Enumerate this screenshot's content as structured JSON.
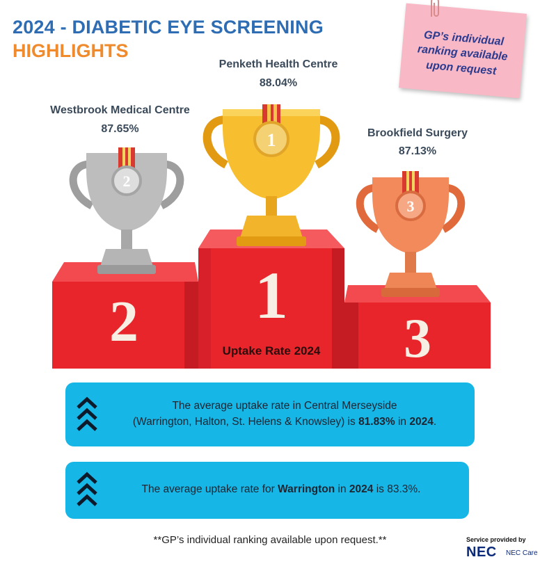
{
  "header": {
    "title_line1": "2024 - DIABETIC EYE SCREENING",
    "title_line2": "HIGHLIGHTS"
  },
  "sticky_note": {
    "text": "GP’s individual\nranking available\nupon request"
  },
  "winners": [
    {
      "rank": "1",
      "name": "Penketh Health Centre",
      "rate": "88.04%"
    },
    {
      "rank": "2",
      "name": "Westbrook Medical Centre",
      "rate": "87.65%"
    },
    {
      "rank": "3",
      "name": "Brookfield Surgery",
      "rate": "87.13%"
    }
  ],
  "podium": {
    "label": "Uptake Rate 2024",
    "rank_1": "1",
    "rank_2": "2",
    "rank_3": "3"
  },
  "info_boxes": [
    {
      "line1": "The average uptake rate in Central Merseyside",
      "line2_pre": "(Warrington, Halton, St. Helens & Knowsley) is ",
      "rate": "81.83%",
      "mid": " in ",
      "year": "2024",
      "end": "."
    },
    {
      "pre": "The average uptake rate for ",
      "area": "Warrington",
      "mid": " in ",
      "year": "2024",
      "mid2": " is ",
      "rate": "83.3%",
      "end": "."
    }
  ],
  "footer": {
    "note": "**GP’s individual ranking available upon request.**",
    "provided_by": "Service provided by",
    "logo": "NEC",
    "logo_sub": "NEC Care"
  },
  "colors": {
    "title_blue": "#2e6db3",
    "title_orange": "#ef8b2c",
    "podium_red": "#e8252b",
    "box_blue": "#16b6e6",
    "note_pink": "#f9b8c6",
    "gold": "#f5b82a",
    "silver": "#b8b8b8",
    "bronze": "#f08a5a"
  }
}
